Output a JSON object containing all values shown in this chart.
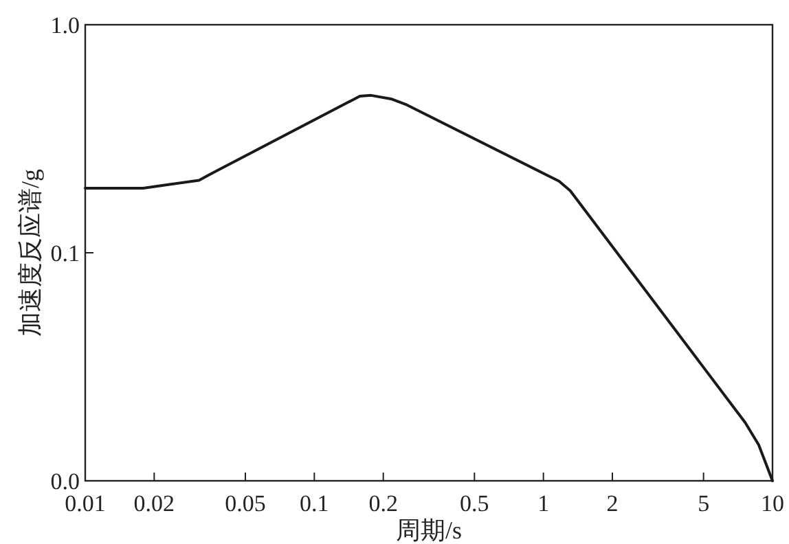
{
  "chart_data": {
    "type": "line",
    "xlabel": "周期/s",
    "ylabel": "加速度反应谱/g",
    "x": [
      0.01,
      0.0179,
      0.0239,
      0.0314,
      0.036,
      0.158,
      0.177,
      0.218,
      0.25,
      1.17,
      1.31,
      7.6,
      8.7,
      10
    ],
    "series": [
      {
        "color": "#1a1a1a",
        "values": [
          0.192,
          0.192,
          0.2,
          0.208,
          0.224,
          0.486,
          0.49,
          0.472,
          0.448,
          0.206,
          0.187,
          0.018,
          0.0144,
          0.01
        ]
      }
    ],
    "xlim": [
      0.01,
      10
    ],
    "ylim": [
      0.01,
      1
    ],
    "xticks": [
      0.01,
      0.02,
      0.05,
      0.1,
      0.2,
      0.5,
      1,
      2,
      5,
      10
    ],
    "yticks": [
      {
        "value": 0.01,
        "label": "0.0"
      },
      {
        "value": 0.1,
        "label": "0.1"
      },
      {
        "value": 1,
        "label": "1.0"
      }
    ],
    "log": "xy",
    "grid": false,
    "marker": "none",
    "line_style": "solid"
  }
}
